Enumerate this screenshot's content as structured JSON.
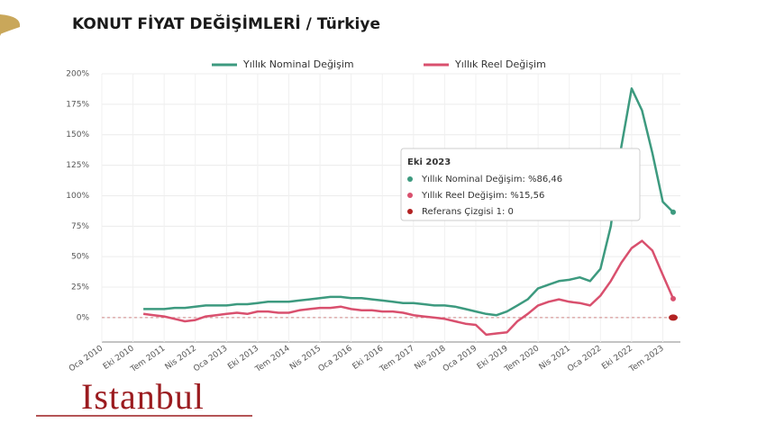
{
  "chart_data": {
    "type": "line",
    "title": "KONUT FİYAT DEĞİŞİMLERİ / Türkiye",
    "logo": "Istanbul",
    "categories": [
      "Oca 2010",
      null,
      null,
      "Eki 2010",
      null,
      null,
      "Tem 2011",
      null,
      null,
      "Nis 2012",
      null,
      null,
      "Oca 2013",
      null,
      null,
      "Eki 2013",
      null,
      null,
      "Tem 2014",
      null,
      null,
      "Nis 2015",
      null,
      null,
      "Oca 2016",
      null,
      null,
      "Eki 2016",
      null,
      null,
      "Tem 2017",
      null,
      null,
      "Nis 2018",
      null,
      null,
      "Oca 2019",
      null,
      null,
      "Eki 2019",
      null,
      null,
      "Tem 2020",
      null,
      null,
      "Nis 2021",
      null,
      null,
      "Oca 2022",
      null,
      null,
      "Eki 2022",
      null,
      null,
      "Tem 2023",
      null
    ],
    "series": [
      {
        "name": "Yıllık Nominal Değişim",
        "color": "#3d9a7f",
        "values": [
          null,
          null,
          null,
          null,
          7,
          7,
          7,
          8,
          8,
          9,
          10,
          10,
          10,
          11,
          11,
          12,
          13,
          13,
          13,
          14,
          15,
          16,
          17,
          17,
          16,
          16,
          15,
          14,
          13,
          12,
          12,
          11,
          10,
          10,
          9,
          7,
          5,
          3,
          2,
          5,
          10,
          15,
          24,
          27,
          30,
          31,
          33,
          30,
          40,
          75,
          140,
          188,
          170,
          135,
          95,
          86.46
        ]
      },
      {
        "name": "Yıllık Reel Değişim",
        "color": "#d9506e",
        "values": [
          null,
          null,
          null,
          null,
          3,
          2,
          1,
          -1,
          -3,
          -2,
          1,
          2,
          3,
          4,
          3,
          5,
          5,
          4,
          4,
          6,
          7,
          8,
          8,
          9,
          7,
          6,
          6,
          5,
          5,
          4,
          2,
          1,
          0,
          -1,
          -3,
          -5,
          -6,
          -14,
          -13,
          -12,
          -3,
          3,
          10,
          13,
          15,
          13,
          12,
          10,
          18,
          30,
          45,
          57,
          63,
          55,
          35,
          15.56
        ]
      }
    ],
    "reference_line": {
      "name": "Referans Çizgisi 1",
      "value": 0,
      "color": "#b22222"
    },
    "ylim": [
      -20,
      200
    ],
    "yticks": [
      {
        "value": 0,
        "label": "0%"
      },
      {
        "value": 25,
        "label": "25%"
      },
      {
        "value": 50,
        "label": "50%"
      },
      {
        "value": 75,
        "label": "75%"
      },
      {
        "value": 100,
        "label": "100%"
      },
      {
        "value": 125,
        "label": "125%"
      },
      {
        "value": 150,
        "label": "150%"
      },
      {
        "value": 175,
        "label": "175%"
      },
      {
        "value": 200,
        "label": "200%"
      }
    ],
    "grid": true,
    "legend": "top",
    "tooltip": {
      "title": "Eki 2023",
      "items": [
        "Yıllık Nominal Değişim: %86,46",
        "Yıllık Reel Değişim: %15,56",
        "Referans Çizgisi 1: 0"
      ]
    }
  }
}
